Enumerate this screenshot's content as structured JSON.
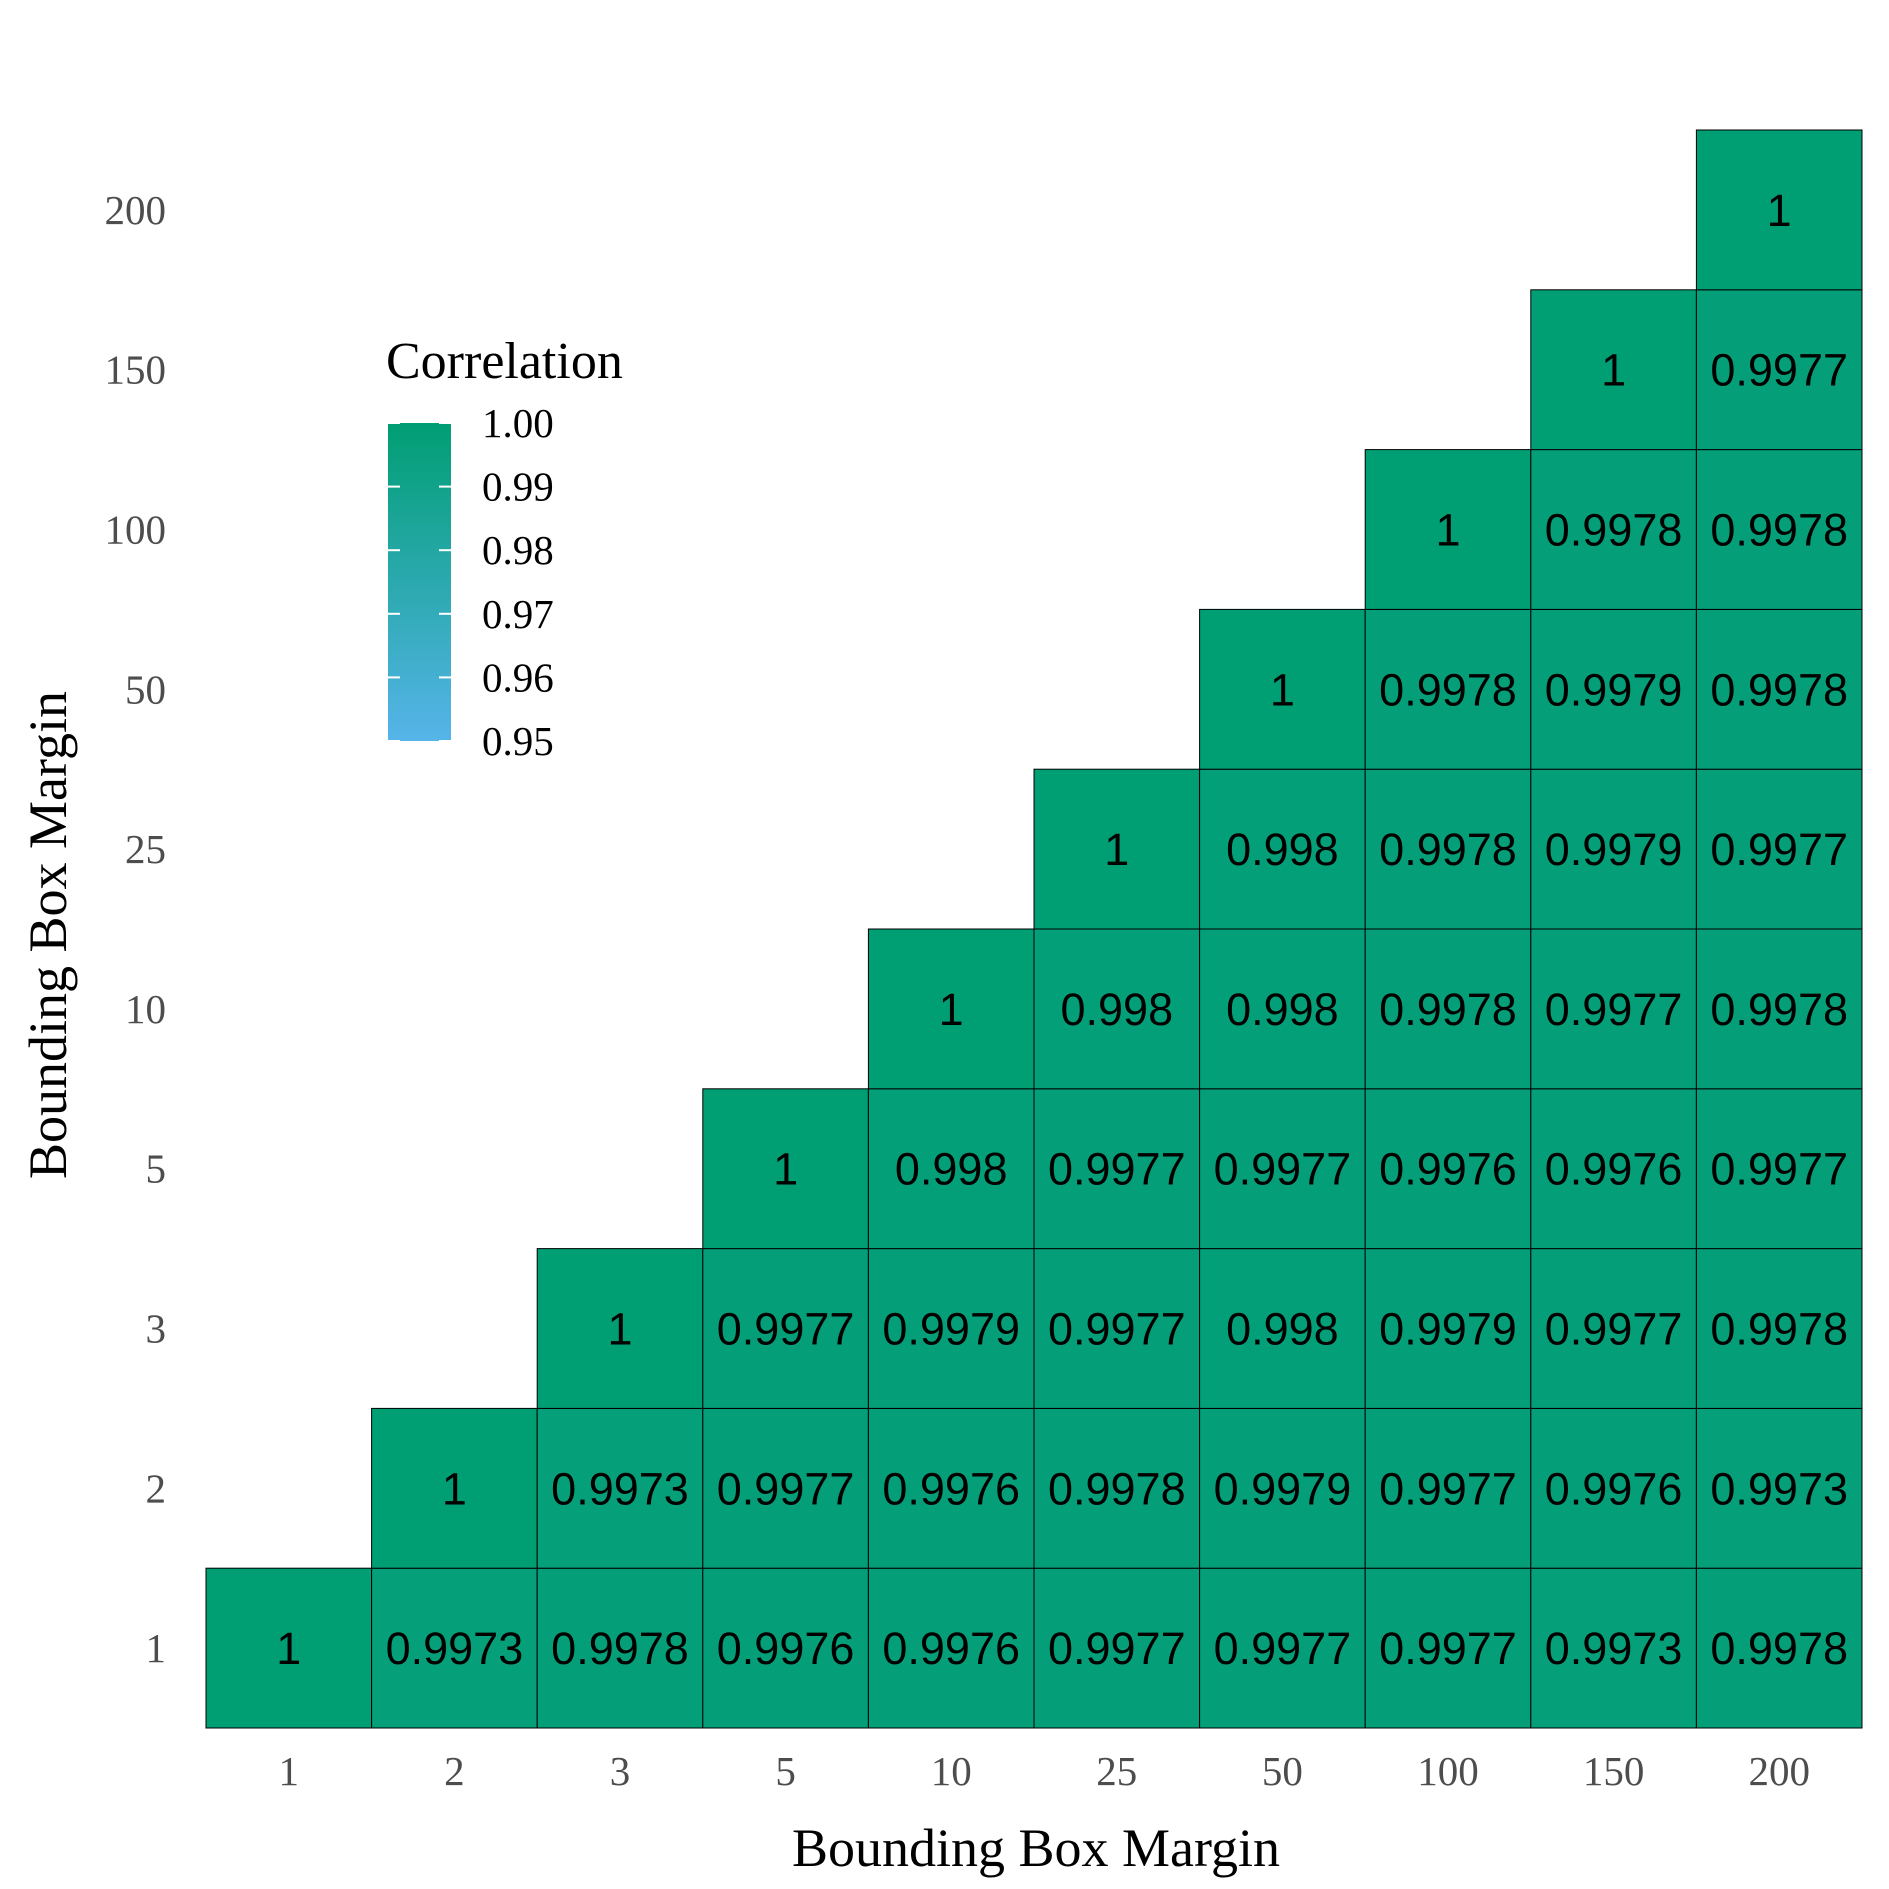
{
  "chart_data": {
    "type": "heatmap",
    "categories": [
      "1",
      "2",
      "3",
      "5",
      "10",
      "25",
      "50",
      "100",
      "150",
      "200"
    ],
    "xlabel": "Bounding Box Margin",
    "ylabel": "Bounding Box Margin",
    "legend": {
      "title": "Correlation",
      "ticks": [
        "1.00",
        "0.99",
        "0.98",
        "0.97",
        "0.96",
        "0.95"
      ],
      "range": [
        0.95,
        1.0
      ],
      "low_color": "#56B4E9",
      "high_color": "#009E73",
      "placement": "top-left"
    },
    "cells": [
      {
        "x": "1",
        "y": "1",
        "value": 1,
        "label": "1"
      },
      {
        "x": "2",
        "y": "1",
        "value": 0.9973,
        "label": "0.9973"
      },
      {
        "x": "3",
        "y": "1",
        "value": 0.9978,
        "label": "0.9978"
      },
      {
        "x": "5",
        "y": "1",
        "value": 0.9976,
        "label": "0.9976"
      },
      {
        "x": "10",
        "y": "1",
        "value": 0.9976,
        "label": "0.9976"
      },
      {
        "x": "25",
        "y": "1",
        "value": 0.9977,
        "label": "0.9977"
      },
      {
        "x": "50",
        "y": "1",
        "value": 0.9977,
        "label": "0.9977"
      },
      {
        "x": "100",
        "y": "1",
        "value": 0.9977,
        "label": "0.9977"
      },
      {
        "x": "150",
        "y": "1",
        "value": 0.9973,
        "label": "0.9973"
      },
      {
        "x": "200",
        "y": "1",
        "value": 0.9978,
        "label": "0.9978"
      },
      {
        "x": "2",
        "y": "2",
        "value": 1,
        "label": "1"
      },
      {
        "x": "3",
        "y": "2",
        "value": 0.9973,
        "label": "0.9973"
      },
      {
        "x": "5",
        "y": "2",
        "value": 0.9977,
        "label": "0.9977"
      },
      {
        "x": "10",
        "y": "2",
        "value": 0.9976,
        "label": "0.9976"
      },
      {
        "x": "25",
        "y": "2",
        "value": 0.9978,
        "label": "0.9978"
      },
      {
        "x": "50",
        "y": "2",
        "value": 0.9979,
        "label": "0.9979"
      },
      {
        "x": "100",
        "y": "2",
        "value": 0.9977,
        "label": "0.9977"
      },
      {
        "x": "150",
        "y": "2",
        "value": 0.9976,
        "label": "0.9976"
      },
      {
        "x": "200",
        "y": "2",
        "value": 0.9973,
        "label": "0.9973"
      },
      {
        "x": "3",
        "y": "3",
        "value": 1,
        "label": "1"
      },
      {
        "x": "5",
        "y": "3",
        "value": 0.9977,
        "label": "0.9977"
      },
      {
        "x": "10",
        "y": "3",
        "value": 0.9979,
        "label": "0.9979"
      },
      {
        "x": "25",
        "y": "3",
        "value": 0.9977,
        "label": "0.9977"
      },
      {
        "x": "50",
        "y": "3",
        "value": 0.998,
        "label": "0.998"
      },
      {
        "x": "100",
        "y": "3",
        "value": 0.9979,
        "label": "0.9979"
      },
      {
        "x": "150",
        "y": "3",
        "value": 0.9977,
        "label": "0.9977"
      },
      {
        "x": "200",
        "y": "3",
        "value": 0.9978,
        "label": "0.9978"
      },
      {
        "x": "5",
        "y": "5",
        "value": 1,
        "label": "1"
      },
      {
        "x": "10",
        "y": "5",
        "value": 0.998,
        "label": "0.998"
      },
      {
        "x": "25",
        "y": "5",
        "value": 0.9977,
        "label": "0.9977"
      },
      {
        "x": "50",
        "y": "5",
        "value": 0.9977,
        "label": "0.9977"
      },
      {
        "x": "100",
        "y": "5",
        "value": 0.9976,
        "label": "0.9976"
      },
      {
        "x": "150",
        "y": "5",
        "value": 0.9976,
        "label": "0.9976"
      },
      {
        "x": "200",
        "y": "5",
        "value": 0.9977,
        "label": "0.9977"
      },
      {
        "x": "10",
        "y": "10",
        "value": 1,
        "label": "1"
      },
      {
        "x": "25",
        "y": "10",
        "value": 0.998,
        "label": "0.998"
      },
      {
        "x": "50",
        "y": "10",
        "value": 0.998,
        "label": "0.998"
      },
      {
        "x": "100",
        "y": "10",
        "value": 0.9978,
        "label": "0.9978"
      },
      {
        "x": "150",
        "y": "10",
        "value": 0.9977,
        "label": "0.9977"
      },
      {
        "x": "200",
        "y": "10",
        "value": 0.9978,
        "label": "0.9978"
      },
      {
        "x": "25",
        "y": "25",
        "value": 1,
        "label": "1"
      },
      {
        "x": "50",
        "y": "25",
        "value": 0.998,
        "label": "0.998"
      },
      {
        "x": "100",
        "y": "25",
        "value": 0.9978,
        "label": "0.9978"
      },
      {
        "x": "150",
        "y": "25",
        "value": 0.9979,
        "label": "0.9979"
      },
      {
        "x": "200",
        "y": "25",
        "value": 0.9977,
        "label": "0.9977"
      },
      {
        "x": "50",
        "y": "50",
        "value": 1,
        "label": "1"
      },
      {
        "x": "100",
        "y": "50",
        "value": 0.9978,
        "label": "0.9978"
      },
      {
        "x": "150",
        "y": "50",
        "value": 0.9979,
        "label": "0.9979"
      },
      {
        "x": "200",
        "y": "50",
        "value": 0.9978,
        "label": "0.9978"
      },
      {
        "x": "100",
        "y": "100",
        "value": 1,
        "label": "1"
      },
      {
        "x": "150",
        "y": "100",
        "value": 0.9978,
        "label": "0.9978"
      },
      {
        "x": "200",
        "y": "100",
        "value": 0.9978,
        "label": "0.9978"
      },
      {
        "x": "150",
        "y": "150",
        "value": 1,
        "label": "1"
      },
      {
        "x": "200",
        "y": "150",
        "value": 0.9977,
        "label": "0.9977"
      },
      {
        "x": "200",
        "y": "200",
        "value": 1,
        "label": "1"
      }
    ],
    "cell_border_color": "#000000"
  }
}
